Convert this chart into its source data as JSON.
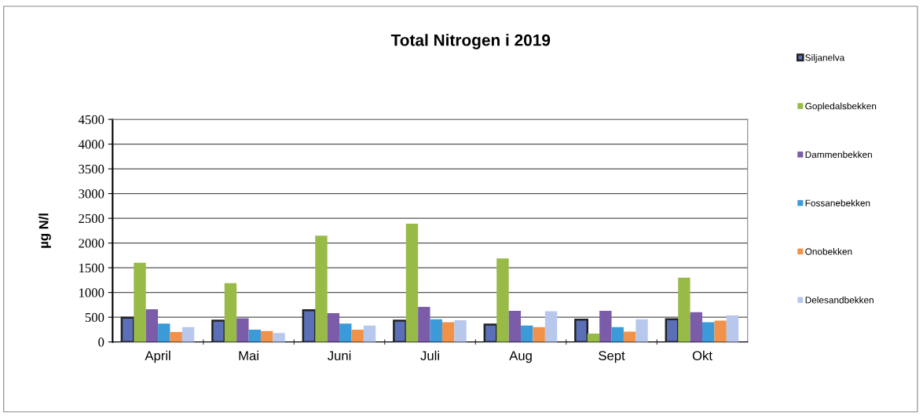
{
  "chart_data": {
    "type": "bar",
    "title": "Total Nitrogen i 2019",
    "ylabel": "µg N/l",
    "categories": [
      "April",
      "Mai",
      "Juni",
      "Juli",
      "Aug",
      "Sept",
      "Okt"
    ],
    "series": [
      {
        "name": "Siljanelva",
        "color": "#5b6fb8",
        "values": [
          490,
          430,
          640,
          430,
          350,
          450,
          460
        ]
      },
      {
        "name": "Gopledalsbekken",
        "color": "#98bb48",
        "values": [
          1600,
          1190,
          2150,
          2390,
          1690,
          170,
          1300
        ]
      },
      {
        "name": "Dammenbekken",
        "color": "#7a5ca8",
        "values": [
          660,
          480,
          580,
          710,
          630,
          630,
          600
        ]
      },
      {
        "name": "Fossanebekken",
        "color": "#3d9ad8",
        "values": [
          370,
          250,
          370,
          460,
          330,
          300,
          400
        ]
      },
      {
        "name": "Onobekken",
        "color": "#f0924a",
        "values": [
          200,
          220,
          250,
          400,
          300,
          210,
          430
        ]
      },
      {
        "name": "Delesandbekken",
        "color": "#b8c8ec",
        "values": [
          300,
          180,
          330,
          440,
          620,
          460,
          540
        ]
      }
    ],
    "ylim": [
      0,
      4500
    ],
    "yticks": [
      0,
      500,
      1000,
      1500,
      2000,
      2500,
      3000,
      3500,
      4000,
      4500
    ],
    "grid": "y",
    "legend": "right"
  }
}
